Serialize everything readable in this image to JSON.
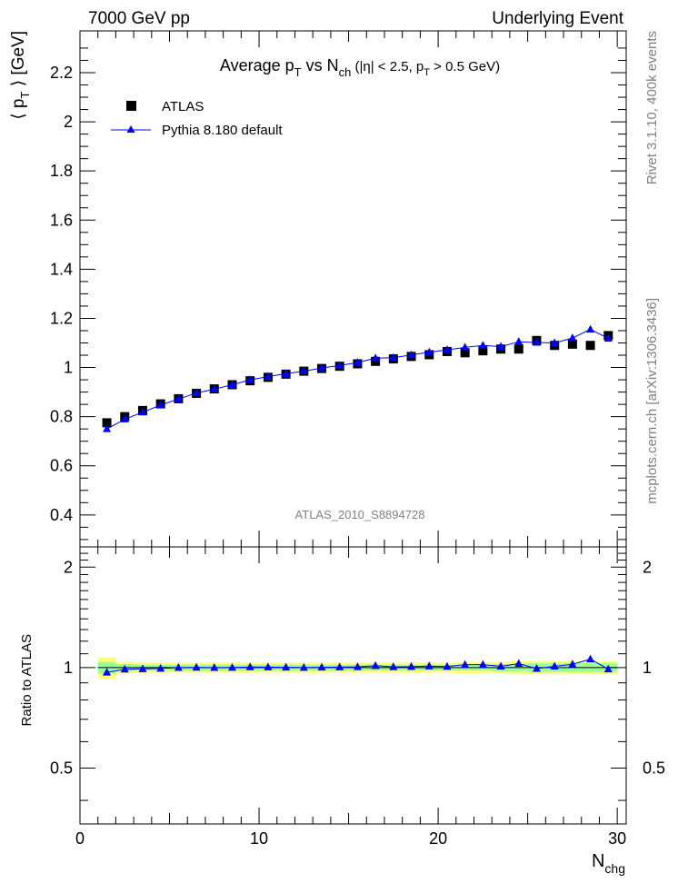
{
  "header": {
    "left": "7000 GeV pp",
    "right": "Underlying Event"
  },
  "side": {
    "rivet": "Rivet 3.1.10,  400k events",
    "mcplots": "mcplots.cern.ch [arXiv:1306.3436]"
  },
  "colors": {
    "atlas": "#000000",
    "pythia": "#0000ff",
    "band_inner": "#99ff99",
    "band_outer": "#ffff80",
    "watermark": "#808080"
  },
  "chart_data": [
    {
      "type": "scatter",
      "title": {
        "prefix": "Average p",
        "sub1": "T",
        "mid": " vs N",
        "sub2": "ch",
        "suffix": " (|η| < 2.5, p",
        "sub3": "T",
        "end": " > 0.5 GeV)"
      },
      "ylabel": {
        "pre": "⟨ p",
        "sub": "T",
        "post": " ⟩ [GeV]"
      },
      "watermark": "ATLAS_2010_S8894728",
      "xlim": [
        0,
        30.5
      ],
      "ylim": [
        0.27,
        2.37
      ],
      "yticks": [
        "0.4",
        "0.6",
        "0.8",
        "1",
        "1.2",
        "1.4",
        "1.6",
        "1.8",
        "2",
        "2.2"
      ],
      "x": [
        1.5,
        2.5,
        3.5,
        4.5,
        5.5,
        6.5,
        7.5,
        8.5,
        9.5,
        10.5,
        11.5,
        12.5,
        13.5,
        14.5,
        15.5,
        16.5,
        17.5,
        18.5,
        19.5,
        20.5,
        21.5,
        22.5,
        23.5,
        24.5,
        25.5,
        26.5,
        27.5,
        28.5,
        29.5
      ],
      "series": [
        {
          "name": "ATLAS",
          "values": [
            0.775,
            0.8,
            0.825,
            0.852,
            0.873,
            0.895,
            0.913,
            0.93,
            0.946,
            0.96,
            0.973,
            0.985,
            0.996,
            1.005,
            1.015,
            1.025,
            1.035,
            1.045,
            1.052,
            1.065,
            1.06,
            1.068,
            1.075,
            1.075,
            1.11,
            1.09,
            1.095,
            1.09,
            1.13
          ]
        },
        {
          "name": "Pythia 8.180 default",
          "values": [
            0.75,
            0.79,
            0.818,
            0.847,
            0.872,
            0.896,
            0.912,
            0.93,
            0.95,
            0.963,
            0.975,
            0.985,
            0.998,
            1.008,
            1.02,
            1.038,
            1.04,
            1.051,
            1.062,
            1.072,
            1.082,
            1.09,
            1.085,
            1.105,
            1.102,
            1.1,
            1.12,
            1.155,
            1.118
          ]
        }
      ]
    },
    {
      "type": "line",
      "ylabel": "Ratio to ATLAS",
      "xlabel": {
        "main": "N",
        "sub": "chg"
      },
      "xlim": [
        0,
        30.5
      ],
      "ylim": [
        0.34,
        2.3
      ],
      "yticks": [
        "0.5",
        "1",
        "2"
      ],
      "xticks": [
        "0",
        "10",
        "20",
        "30"
      ],
      "x": [
        1.5,
        2.5,
        3.5,
        4.5,
        5.5,
        6.5,
        7.5,
        8.5,
        9.5,
        10.5,
        11.5,
        12.5,
        13.5,
        14.5,
        15.5,
        16.5,
        17.5,
        18.5,
        19.5,
        20.5,
        21.5,
        22.5,
        23.5,
        24.5,
        25.5,
        26.5,
        27.5,
        28.5,
        29.5
      ],
      "series": [
        {
          "name": "Pythia 8.180 default",
          "values": [
            0.968,
            0.988,
            0.991,
            0.994,
            0.999,
            1.001,
            0.999,
            1.0,
            1.004,
            1.003,
            1.002,
            1.0,
            1.002,
            1.003,
            1.005,
            1.013,
            1.005,
            1.006,
            1.01,
            1.007,
            1.021,
            1.021,
            1.009,
            1.028,
            0.993,
            1.009,
            1.023,
            1.06,
            0.989
          ]
        }
      ],
      "band_inner_halfwidth": [
        0.04,
        0.025,
        0.02,
        0.02,
        0.02,
        0.02,
        0.02,
        0.02,
        0.02,
        0.02,
        0.02,
        0.02,
        0.02,
        0.02,
        0.02,
        0.02,
        0.02,
        0.02,
        0.02,
        0.02,
        0.02,
        0.02,
        0.025,
        0.025,
        0.03,
        0.03,
        0.03,
        0.03,
        0.03
      ],
      "band_outer_halfwidth": [
        0.075,
        0.04,
        0.035,
        0.035,
        0.035,
        0.035,
        0.035,
        0.035,
        0.035,
        0.035,
        0.035,
        0.035,
        0.035,
        0.035,
        0.035,
        0.035,
        0.035,
        0.035,
        0.035,
        0.035,
        0.04,
        0.04,
        0.04,
        0.045,
        0.045,
        0.045,
        0.045,
        0.045,
        0.045
      ]
    }
  ]
}
